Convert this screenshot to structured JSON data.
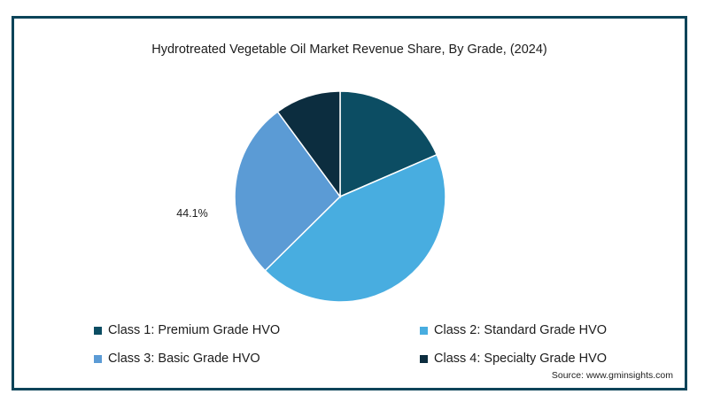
{
  "chart_data": {
    "type": "pie",
    "title": "Hydrotreated Vegetable Oil Market Revenue Share, By Grade, (2024)",
    "slices": [
      {
        "label": "Class 1: Premium Grade HVO",
        "value": 18.5,
        "color": "#0c4d63"
      },
      {
        "label": "Class 2: Standard Grade HVO",
        "value": 44.1,
        "color": "#48ade0"
      },
      {
        "label": "Class 3: Basic Grade HVO",
        "value": 27.3,
        "color": "#5b9bd5"
      },
      {
        "label": "Class 4: Specialty Grade HVO",
        "value": 10.1,
        "color": "#0c2d3f"
      }
    ],
    "data_labels": [
      {
        "slice": "Class 2: Standard Grade HVO",
        "text": "44.1%"
      }
    ],
    "legend_position": "bottom"
  },
  "source": "Source: www.gminsights.com"
}
